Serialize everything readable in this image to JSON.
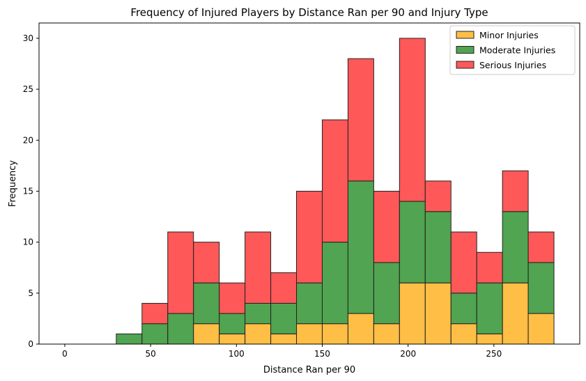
{
  "chart_data": {
    "type": "bar",
    "stacked": true,
    "title": "Frequency of Injured Players by Distance Ran per 90 and Injury Type",
    "xlabel": "Distance Ran per 90",
    "ylabel": "Frequency",
    "xlim": [
      -15,
      300
    ],
    "ylim": [
      0,
      31.5
    ],
    "xticks": [
      0,
      50,
      100,
      150,
      200,
      250
    ],
    "yticks": [
      0,
      5,
      10,
      15,
      20,
      25,
      30
    ],
    "bin_width": 15,
    "bin_starts": [
      0,
      15,
      30,
      45,
      60,
      75,
      90,
      105,
      120,
      135,
      150,
      165,
      180,
      195,
      210,
      225,
      240,
      255,
      270
    ],
    "series": [
      {
        "name": "Minor Injuries",
        "color": "#FFB732",
        "values": [
          0,
          0,
          0,
          0,
          0,
          2,
          1,
          2,
          1,
          2,
          2,
          3,
          2,
          6,
          6,
          2,
          1,
          6,
          3
        ]
      },
      {
        "name": "Moderate Injuries",
        "color": "#3E9A3E",
        "values": [
          0,
          0,
          1,
          2,
          3,
          4,
          2,
          2,
          3,
          4,
          8,
          13,
          6,
          8,
          7,
          3,
          5,
          7,
          5
        ]
      },
      {
        "name": "Serious Injuries",
        "color": "#FF4646",
        "values": [
          0,
          0,
          0,
          2,
          8,
          4,
          3,
          7,
          3,
          9,
          12,
          12,
          7,
          16,
          3,
          6,
          3,
          4,
          3
        ]
      }
    ],
    "legend_position": "top-right",
    "grid": false
  }
}
